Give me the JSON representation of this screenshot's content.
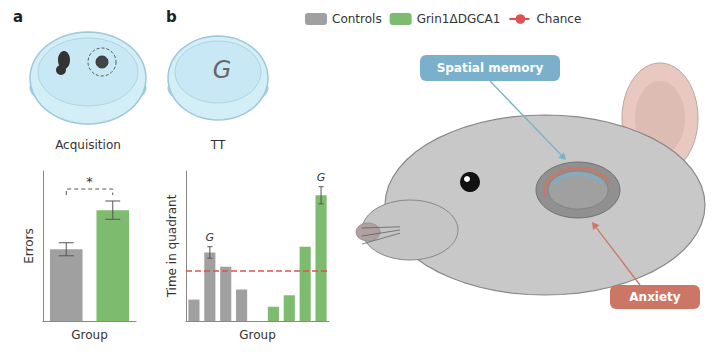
{
  "chart_data": [
    {
      "type": "bar",
      "title": "a",
      "xlabel": "Group",
      "ylabel": "Errors",
      "ylim": [
        0,
        1.15
      ],
      "tick_labels": false,
      "grid": false,
      "series": [
        {
          "name": "Controls",
          "color": "#a0a0a0",
          "values": [
            0.55
          ],
          "errors": [
            0.05
          ]
        },
        {
          "name": "Grin1ΔDGCA1",
          "color": "#7dbb6e",
          "values": [
            0.85
          ],
          "errors": [
            0.07
          ]
        }
      ],
      "annotations": [
        {
          "text": "*",
          "between": [
            "Controls",
            "Grin1ΔDGCA1"
          ]
        }
      ]
    },
    {
      "type": "bar",
      "title": "b",
      "xlabel": "Group",
      "ylabel": "Time in quadrant",
      "ylim": [
        0,
        1.05
      ],
      "tick_labels": false,
      "grid": false,
      "series": [
        {
          "name": "Controls",
          "color": "#a0a0a0",
          "values": [
            0.15,
            0.48,
            0.38,
            0.22
          ],
          "errors": [
            null,
            0.04,
            null,
            null
          ]
        },
        {
          "name": "Grin1ΔDGCA1",
          "color": "#7dbb6e",
          "values": [
            0.1,
            0.18,
            0.52,
            0.88
          ],
          "errors": [
            null,
            null,
            null,
            0.06
          ]
        },
        {
          "name": "Chance",
          "type": "hline",
          "color": "#e05050",
          "line_style": "dashed",
          "values": [
            0.35
          ]
        }
      ],
      "annotations": [
        {
          "text": "G",
          "series": "Controls",
          "index": 1
        },
        {
          "text": "G",
          "series": "Grin1ΔDGCA1",
          "index": 3
        }
      ]
    }
  ],
  "legend": "top",
  "annotations": [
    {
      "text": "Acquisition"
    },
    {
      "text": "TT"
    },
    {
      "text": "G"
    },
    {
      "text": "Spatial memory",
      "color": "#7ab0cc"
    },
    {
      "text": "Anxiety",
      "color": "#cc7766"
    }
  ]
}
